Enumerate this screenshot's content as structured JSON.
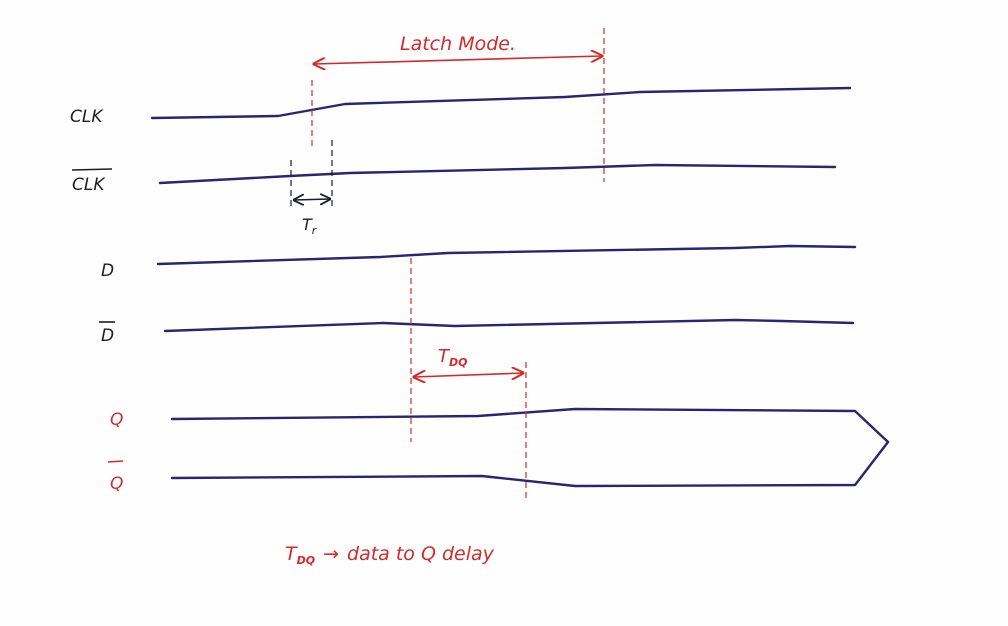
{
  "colors": {
    "wave": "#2b2470",
    "annotation": "#d42a2a",
    "black_label": "#1c1c2a"
  },
  "labels": {
    "clk": "CLK",
    "clk_bar": "CLK",
    "d": "D",
    "d_bar": "D",
    "q": "Q",
    "q_bar": "Q",
    "tr": "T",
    "tr_sub": "r",
    "latch_mode": "Latch Mode.",
    "tdq": "T",
    "tdq_sub": "DQ",
    "legend_tdq": "T",
    "legend_tdq_sub": "DQ",
    "legend_arrow": "→",
    "legend_text": "data to Q delay"
  }
}
